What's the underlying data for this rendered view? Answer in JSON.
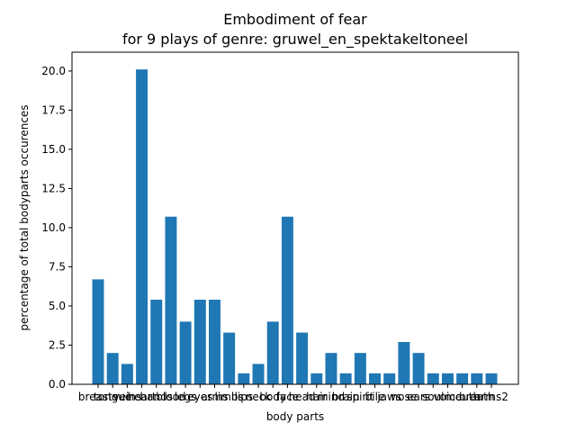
{
  "chart_data": {
    "type": "bar",
    "title": "Embodiment of fear",
    "subtitle": "for 9 plays of genre: gruwel_en_spektakeltoneel",
    "xlabel": "body parts",
    "ylabel": "percentage of total bodyparts occurences",
    "ylim": [
      0,
      21.2
    ],
    "yticks": [
      "0.0",
      "2.5",
      "5.0",
      "7.5",
      "10.0",
      "12.5",
      "15.0",
      "17.5",
      "20.0"
    ],
    "bar_color": "#1f77b4",
    "grid": false,
    "categories": [
      "breasts",
      "tongue",
      "veins",
      "heart",
      "hands",
      "blood",
      "legs",
      "eyes",
      "arms",
      "limbs",
      "lips",
      "neck",
      "body",
      "face",
      "head",
      "hair",
      "mind",
      "brain",
      "spirit",
      "bile",
      "jaws",
      "nose",
      "ears",
      "soul",
      "voice",
      "mouth",
      "breath",
      "arms2"
    ],
    "values": [
      6.7,
      2.0,
      1.3,
      20.1,
      5.4,
      10.7,
      4.0,
      5.4,
      5.4,
      3.3,
      0.7,
      1.3,
      4.0,
      10.7,
      3.3,
      0.7,
      2.0,
      0.7,
      2.0,
      0.7,
      0.7,
      2.7,
      2.0,
      0.7,
      0.7,
      0.7,
      0.7,
      0.7
    ]
  }
}
